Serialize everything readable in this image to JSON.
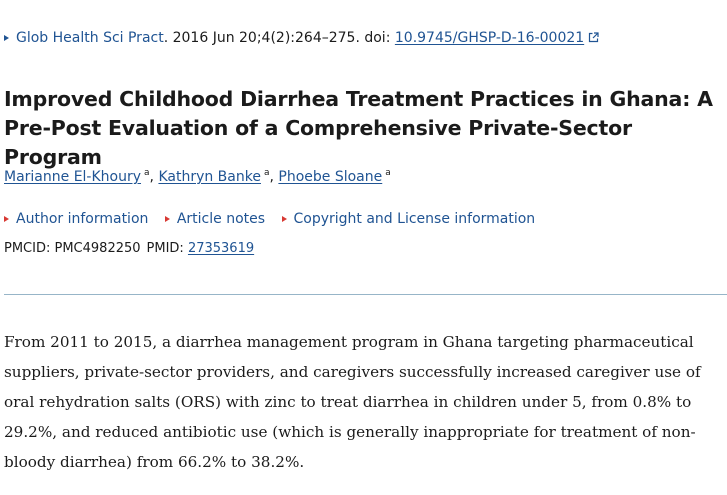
{
  "citation": {
    "journal": "Glob Health Sci Pract",
    "details": ". 2016 Jun 20;4(2):264–275. doi: ",
    "doi": "10.9745/GHSP-D-16-00021"
  },
  "title": "Improved Childhood Diarrhea Treatment Practices in Ghana: A Pre-Post Evaluation of a Comprehensive Private-Sector Program",
  "authors": [
    {
      "name": "Marianne El-Khoury",
      "affil": "a"
    },
    {
      "name": "Kathryn Banke",
      "affil": "a"
    },
    {
      "name": "Phoebe Sloane",
      "affil": "a"
    }
  ],
  "author_separator": ",",
  "info_links": {
    "author_info": "Author information",
    "article_notes": "Article notes",
    "copyright": "Copyright and License information"
  },
  "ids": {
    "pmcid_label": "PMCID: ",
    "pmcid": "PMC4982250",
    "pmid_label": "PMID: ",
    "pmid": "27353619"
  },
  "abstract": "From 2011 to 2015, a diarrhea management program in Ghana targeting pharmaceutical suppliers, private-sector providers, and caregivers successfully increased caregiver use of oral rehydration salts (ORS) with zinc to treat diarrhea in children under 5, from 0.8% to 29.2%, and reduced antibiotic use (which is generally inappropriate for treatment of non-bloody diarrhea) from 66.2% to 38.2%.",
  "colors": {
    "link": "#205493",
    "accent_red": "#d83933",
    "divider": "#97b5c8",
    "text": "#1b1b1b"
  },
  "icons": {
    "citation_toggle": "caret-right-icon",
    "external_link": "external-link-icon",
    "info_toggle": "caret-right-icon"
  }
}
